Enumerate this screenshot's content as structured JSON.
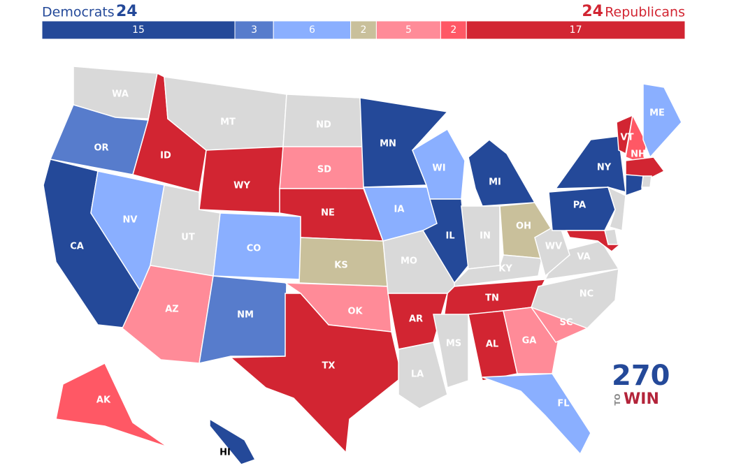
{
  "header": {
    "dem_label": "Democrats",
    "dem_total": 24,
    "rep_total": 24,
    "rep_label": "Republicans"
  },
  "bar": {
    "segments": [
      {
        "value": 15,
        "color": "#244999"
      },
      {
        "value": 3,
        "color": "#577ccc"
      },
      {
        "value": 6,
        "color": "#8aafff"
      },
      {
        "value": 2,
        "color": "#c9c09b"
      },
      {
        "value": 5,
        "color": "#ff8b98"
      },
      {
        "value": 2,
        "color": "#ff5865"
      },
      {
        "value": 17,
        "color": "#d22532"
      }
    ]
  },
  "states": [
    {
      "label": "WA",
      "color": "#d9d9d9"
    },
    {
      "label": "OR",
      "color": "#577ccc"
    },
    {
      "label": "CA",
      "color": "#244999"
    },
    {
      "label": "ID",
      "color": "#d22532"
    },
    {
      "label": "NV",
      "color": "#8aafff"
    },
    {
      "label": "MT",
      "color": "#d9d9d9"
    },
    {
      "label": "WY",
      "color": "#d22532"
    },
    {
      "label": "UT",
      "color": "#d9d9d9"
    },
    {
      "label": "AZ",
      "color": "#ff8b98"
    },
    {
      "label": "CO",
      "color": "#8aafff"
    },
    {
      "label": "NM",
      "color": "#577ccc"
    },
    {
      "label": "ND",
      "color": "#d9d9d9"
    },
    {
      "label": "SD",
      "color": "#ff8b98"
    },
    {
      "label": "NE",
      "color": "#d22532"
    },
    {
      "label": "KS",
      "color": "#c9c09b"
    },
    {
      "label": "OK",
      "color": "#ff8b98"
    },
    {
      "label": "TX",
      "color": "#d22532"
    },
    {
      "label": "MN",
      "color": "#244999"
    },
    {
      "label": "IA",
      "color": "#8aafff"
    },
    {
      "label": "MO",
      "color": "#d9d9d9"
    },
    {
      "label": "AR",
      "color": "#d22532"
    },
    {
      "label": "LA",
      "color": "#d9d9d9"
    },
    {
      "label": "WI",
      "color": "#8aafff"
    },
    {
      "label": "IL",
      "color": "#244999"
    },
    {
      "label": "MI",
      "color": "#244999"
    },
    {
      "label": "IN",
      "color": "#d9d9d9"
    },
    {
      "label": "OH",
      "color": "#c9c09b"
    },
    {
      "label": "KY",
      "color": "#d9d9d9"
    },
    {
      "label": "TN",
      "color": "#d22532"
    },
    {
      "label": "MS",
      "color": "#d9d9d9"
    },
    {
      "label": "AL",
      "color": "#d22532"
    },
    {
      "label": "GA",
      "color": "#ff8b98"
    },
    {
      "label": "FL",
      "color": "#8aafff"
    },
    {
      "label": "SC",
      "color": "#ff8b98"
    },
    {
      "label": "NC",
      "color": "#d9d9d9"
    },
    {
      "label": "VA",
      "color": "#d9d9d9"
    },
    {
      "label": "WV",
      "color": "#d9d9d9"
    },
    {
      "label": "PA",
      "color": "#244999"
    },
    {
      "label": "NY",
      "color": "#244999"
    },
    {
      "label": "VT",
      "color": "#d22532"
    },
    {
      "label": "NH",
      "color": "#ff5865"
    },
    {
      "label": "ME",
      "color": "#8aafff"
    },
    {
      "label": "AK",
      "color": "#ff5865"
    },
    {
      "label": "HI",
      "color": "#244999"
    }
  ],
  "logo": {
    "number": "270",
    "to": "TO",
    "win": "WIN"
  }
}
